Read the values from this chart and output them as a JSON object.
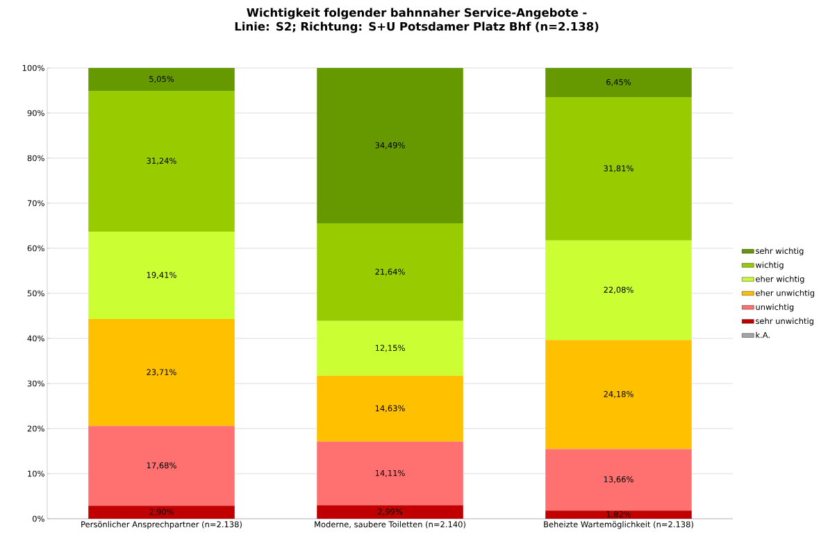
{
  "chart_data": {
    "type": "bar",
    "stacked": true,
    "title": "Wichtigkeit folgender bahnnaher Service-Angebote - Linie: S2; Richtung: S+U Potsdamer Platz Bhf (n=2.138)",
    "categories": [
      "Persönlicher Ansprechpartner (n=2.138)",
      "Moderne, saubere Toiletten (n=2.140)",
      "Beheizte Wartemöglichkeit (n=2.138)"
    ],
    "series": [
      {
        "name": "k.A.",
        "color": "#a6a6a6",
        "values": [
          0,
          0,
          0
        ],
        "value_labels": [
          null,
          null,
          null
        ]
      },
      {
        "name": "sehr unwichtig",
        "color": "#c00000",
        "values": [
          2.9,
          2.99,
          1.82
        ],
        "value_labels": [
          "2,90%",
          "2,99%",
          "1,82%"
        ]
      },
      {
        "name": "unwichtig",
        "color": "#ff7171",
        "values": [
          17.68,
          14.11,
          13.66
        ],
        "value_labels": [
          "17,68%",
          "14,11%",
          "13,66%"
        ]
      },
      {
        "name": "eher unwichtig",
        "color": "#ffc000",
        "values": [
          23.71,
          14.63,
          24.18
        ],
        "value_labels": [
          "23,71%",
          "14,63%",
          "24,18%"
        ]
      },
      {
        "name": "eher wichtig",
        "color": "#ccff33",
        "values": [
          19.41,
          12.15,
          22.08
        ],
        "value_labels": [
          "19,41%",
          "12,15%",
          "22,08%"
        ]
      },
      {
        "name": "wichtig",
        "color": "#99cc00",
        "values": [
          31.24,
          21.64,
          31.81
        ],
        "value_labels": [
          "31,24%",
          "21,64%",
          "31,81%"
        ]
      },
      {
        "name": "sehr wichtig",
        "color": "#669900",
        "values": [
          5.05,
          34.49,
          6.45
        ],
        "value_labels": [
          "5,05%",
          "34,49%",
          "6,45%"
        ]
      }
    ],
    "ylim": [
      0,
      100
    ],
    "yticks": [
      {
        "value": 0,
        "label": "0%"
      },
      {
        "value": 10,
        "label": "10%"
      },
      {
        "value": 20,
        "label": "20%"
      },
      {
        "value": 30,
        "label": "30%"
      },
      {
        "value": 40,
        "label": "40%"
      },
      {
        "value": 50,
        "label": "50%"
      },
      {
        "value": 60,
        "label": "60%"
      },
      {
        "value": 70,
        "label": "70%"
      },
      {
        "value": 80,
        "label": "80%"
      },
      {
        "value": 90,
        "label": "90%"
      },
      {
        "value": 100,
        "label": "100%"
      }
    ],
    "grid": "y",
    "legend": "right"
  }
}
